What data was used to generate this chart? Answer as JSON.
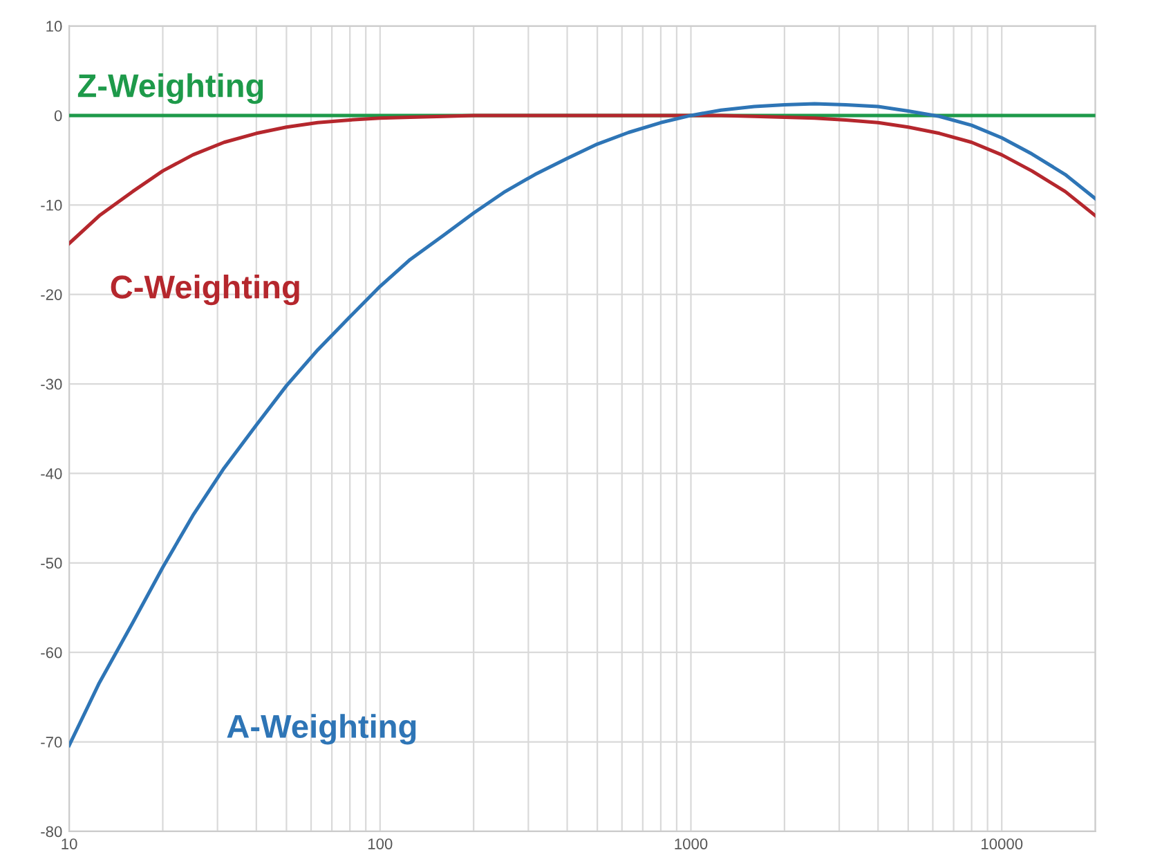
{
  "chart_data": {
    "type": "line",
    "x": [
      10,
      12.5,
      16,
      20,
      25,
      31.5,
      40,
      50,
      63,
      80,
      100,
      125,
      160,
      200,
      250,
      315,
      400,
      500,
      630,
      800,
      1000,
      1250,
      1600,
      2000,
      2500,
      3150,
      4000,
      5000,
      6300,
      8000,
      10000,
      12500,
      16000,
      20000
    ],
    "series": [
      {
        "name": "Z-Weighting",
        "color": "#1e9a4a",
        "values": [
          0,
          0,
          0,
          0,
          0,
          0,
          0,
          0,
          0,
          0,
          0,
          0,
          0,
          0,
          0,
          0,
          0,
          0,
          0,
          0,
          0,
          0,
          0,
          0,
          0,
          0,
          0,
          0,
          0,
          0,
          0,
          0,
          0,
          0
        ]
      },
      {
        "name": "C-Weighting",
        "color": "#b5272d",
        "values": [
          -14.3,
          -11.2,
          -8.5,
          -6.2,
          -4.4,
          -3.0,
          -2.0,
          -1.3,
          -0.8,
          -0.5,
          -0.3,
          -0.2,
          -0.1,
          0,
          0,
          0,
          0,
          0,
          0,
          0,
          0,
          0,
          -0.1,
          -0.2,
          -0.3,
          -0.5,
          -0.8,
          -1.3,
          -2.0,
          -3.0,
          -4.4,
          -6.2,
          -8.5,
          -11.2
        ]
      },
      {
        "name": "A-Weighting",
        "color": "#2e75b6",
        "values": [
          -70.4,
          -63.4,
          -56.7,
          -50.5,
          -44.7,
          -39.4,
          -34.6,
          -30.2,
          -26.2,
          -22.5,
          -19.1,
          -16.1,
          -13.4,
          -10.9,
          -8.6,
          -6.6,
          -4.8,
          -3.2,
          -1.9,
          -0.8,
          0,
          0.6,
          1.0,
          1.2,
          1.3,
          1.2,
          1.0,
          0.5,
          -0.1,
          -1.1,
          -2.5,
          -4.3,
          -6.6,
          -9.3
        ]
      }
    ],
    "log": "x",
    "xlim": [
      10,
      20000
    ],
    "xticks": [
      10,
      100,
      1000,
      10000
    ],
    "ylim": [
      -80,
      10
    ],
    "yticks": [
      -80,
      -70,
      -60,
      -50,
      -40,
      -30,
      -20,
      -10,
      0,
      10
    ],
    "grid": true,
    "marker": "none",
    "line_style": "solid"
  }
}
